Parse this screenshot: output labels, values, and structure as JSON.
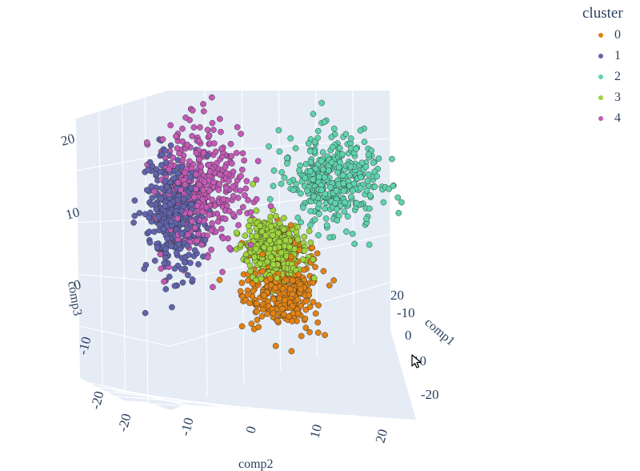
{
  "chart_data": {
    "type": "scatter3d",
    "axes": {
      "x": {
        "title": "comp1",
        "ticks": [
          20,
          10,
          0,
          -10,
          -20
        ]
      },
      "y": {
        "title": "comp2",
        "ticks": [
          -20,
          -10,
          0,
          10,
          20
        ]
      },
      "z": {
        "title": "comp3",
        "ticks": [
          20,
          10,
          0,
          -10,
          -20
        ]
      }
    },
    "legend": {
      "title": "cluster",
      "position": "top-right"
    },
    "series": [
      {
        "name": "0",
        "color": "#e08214",
        "center": [
          2,
          4,
          -6
        ],
        "spread": [
          9,
          6,
          6
        ]
      },
      {
        "name": "1",
        "color": "#6164ac",
        "center": [
          8,
          -14,
          4
        ],
        "spread": [
          8,
          5,
          9
        ]
      },
      {
        "name": "2",
        "color": "#5ed3ad",
        "center": [
          -10,
          10,
          8
        ],
        "spread": [
          9,
          8,
          7
        ]
      },
      {
        "name": "3",
        "color": "#9fd43c",
        "center": [
          2,
          2,
          0
        ],
        "spread": [
          6,
          5,
          4
        ]
      },
      {
        "name": "4",
        "color": "#c25ab6",
        "center": [
          4,
          -10,
          8
        ],
        "spread": [
          10,
          7,
          10
        ]
      }
    ],
    "grid": true,
    "pane_color": "#e5ecf6"
  }
}
